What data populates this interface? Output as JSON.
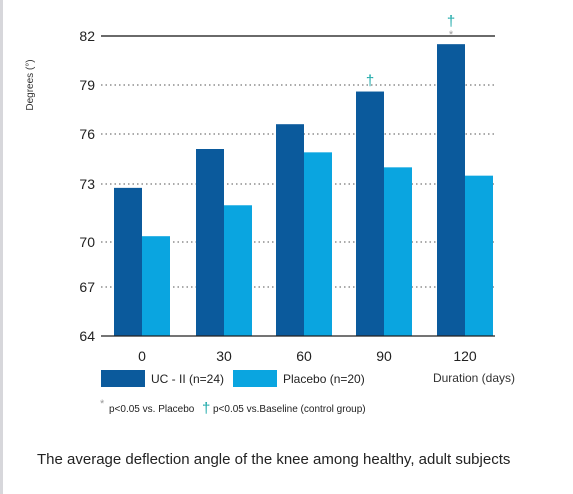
{
  "chart_data": {
    "type": "bar",
    "categories": [
      "0",
      "30",
      "60",
      "90",
      "120"
    ],
    "series": [
      {
        "name": "UC - II (n=24)",
        "color": "#0b5a9c",
        "values": [
          72.8,
          75.1,
          76.6,
          78.6,
          81.5
        ]
      },
      {
        "name": "Placebo (n=20)",
        "color": "#0aa5e0",
        "values": [
          70.3,
          71.9,
          74.9,
          74.0,
          73.5
        ]
      }
    ],
    "ylabel": "Degrees (°)",
    "xlabel": "Duration (days)",
    "yticks": [
      64,
      67,
      70,
      73,
      76,
      79,
      82
    ],
    "ylim": [
      64,
      82
    ],
    "grid": "dotted horizontal",
    "legend": "bottom-left",
    "markers": [
      {
        "category": "90",
        "series": "UC - II (n=24)",
        "symbols": [
          "†"
        ]
      },
      {
        "category": "120",
        "series": "UC - II (n=24)",
        "symbols": [
          "†",
          "*"
        ]
      }
    ]
  },
  "footnotes": {
    "star_symbol": "*",
    "star_text": "p<0.05 vs. Placebo",
    "dagger_symbol": "†",
    "dagger_text": "p<0.05 vs.Baseline (control group)"
  },
  "caption": "The average deflection angle of the knee among healthy, adult subjects"
}
